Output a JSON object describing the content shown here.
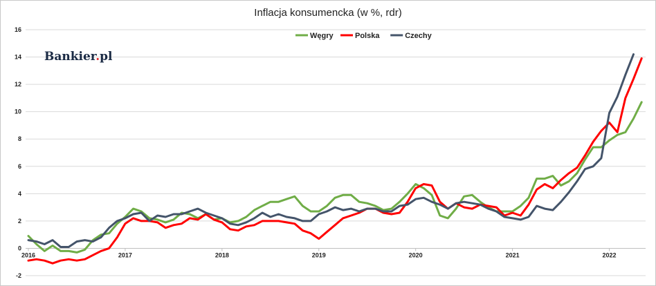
{
  "logo": {
    "text": "Bankier",
    "dot": ".",
    "suffix": "pl"
  },
  "colors": {
    "Węgry": "#70ad47",
    "Polska": "#ff0000",
    "Czechy": "#44546a",
    "grid": "#d9d9d9"
  },
  "chart_data": {
    "type": "line",
    "title": "Inflacja konsumencka (w %, rdr)",
    "xlabel": "",
    "ylabel": "",
    "ylim": [
      -2,
      16
    ],
    "yticks": [
      -2,
      0,
      2,
      4,
      6,
      8,
      10,
      12,
      14,
      16
    ],
    "grid": true,
    "legend_position": "top-center",
    "x_start": "2016-01",
    "x_tick_labels": [
      "2016",
      "2017",
      "2018",
      "2019",
      "2020",
      "2021",
      "2022"
    ],
    "series": [
      {
        "name": "Węgry",
        "values": [
          0.9,
          0.3,
          -0.2,
          0.2,
          -0.2,
          -0.2,
          -0.3,
          -0.1,
          0.6,
          1.0,
          1.1,
          1.8,
          2.3,
          2.9,
          2.7,
          2.2,
          2.1,
          1.9,
          2.1,
          2.6,
          2.5,
          2.2,
          2.5,
          2.1,
          2.2,
          1.9,
          2.0,
          2.3,
          2.8,
          3.1,
          3.4,
          3.4,
          3.6,
          3.8,
          3.1,
          2.7,
          2.7,
          3.1,
          3.7,
          3.9,
          3.9,
          3.4,
          3.3,
          3.1,
          2.8,
          2.9,
          3.4,
          4.0,
          4.7,
          4.4,
          3.9,
          2.4,
          2.2,
          2.9,
          3.8,
          3.9,
          3.4,
          3.0,
          2.7,
          2.7,
          2.7,
          3.1,
          3.7,
          5.1,
          5.1,
          5.3,
          4.6,
          4.9,
          5.5,
          6.5,
          7.4,
          7.4,
          7.9,
          8.3,
          8.5,
          9.5,
          10.7
        ]
      },
      {
        "name": "Polska",
        "values": [
          -0.9,
          -0.8,
          -0.9,
          -1.1,
          -0.9,
          -0.8,
          -0.9,
          -0.8,
          -0.5,
          -0.2,
          0.0,
          0.8,
          1.8,
          2.2,
          2.0,
          2.0,
          1.9,
          1.5,
          1.7,
          1.8,
          2.2,
          2.1,
          2.5,
          2.1,
          1.9,
          1.4,
          1.3,
          1.6,
          1.7,
          2.0,
          2.0,
          2.0,
          1.9,
          1.8,
          1.3,
          1.1,
          0.7,
          1.2,
          1.7,
          2.2,
          2.4,
          2.6,
          2.9,
          2.9,
          2.6,
          2.5,
          2.6,
          3.4,
          4.4,
          4.7,
          4.6,
          3.4,
          2.9,
          3.3,
          3.0,
          2.9,
          3.2,
          3.1,
          3.0,
          2.4,
          2.6,
          2.4,
          3.2,
          4.3,
          4.7,
          4.4,
          5.0,
          5.5,
          5.9,
          6.8,
          7.8,
          8.6,
          9.2,
          8.5,
          11.0,
          12.4,
          13.9
        ]
      },
      {
        "name": "Czechy",
        "values": [
          0.6,
          0.5,
          0.3,
          0.6,
          0.1,
          0.1,
          0.5,
          0.6,
          0.5,
          0.8,
          1.5,
          2.0,
          2.2,
          2.5,
          2.6,
          2.0,
          2.4,
          2.3,
          2.5,
          2.5,
          2.7,
          2.9,
          2.6,
          2.4,
          2.2,
          1.8,
          1.7,
          1.9,
          2.2,
          2.6,
          2.3,
          2.5,
          2.3,
          2.2,
          2.0,
          2.0,
          2.5,
          2.7,
          3.0,
          2.8,
          2.9,
          2.7,
          2.9,
          2.9,
          2.7,
          2.7,
          3.1,
          3.2,
          3.6,
          3.7,
          3.4,
          3.2,
          2.9,
          3.3,
          3.4,
          3.3,
          3.2,
          2.9,
          2.7,
          2.3,
          2.2,
          2.1,
          2.3,
          3.1,
          2.9,
          2.8,
          3.4,
          4.1,
          4.9,
          5.8,
          6.0,
          6.6,
          9.9,
          11.1,
          12.7,
          14.2
        ]
      }
    ]
  }
}
